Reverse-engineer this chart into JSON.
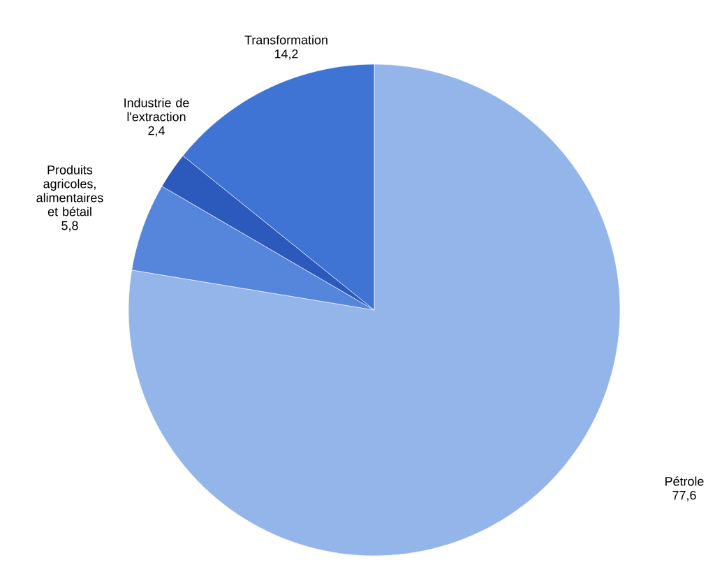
{
  "chart_data": {
    "type": "pie",
    "categories": [
      "Pétrole",
      "Produits agricoles, alimentaires et bétail",
      "Industrie de l'extraction",
      "Transformation"
    ],
    "values": [
      77.6,
      5.8,
      2.4,
      14.2
    ],
    "value_labels": [
      "77,6",
      "5,8",
      "2,4",
      "14,2"
    ],
    "colors": [
      "#93b5ea",
      "#5686dc",
      "#2c59bc",
      "#4074d4"
    ]
  }
}
